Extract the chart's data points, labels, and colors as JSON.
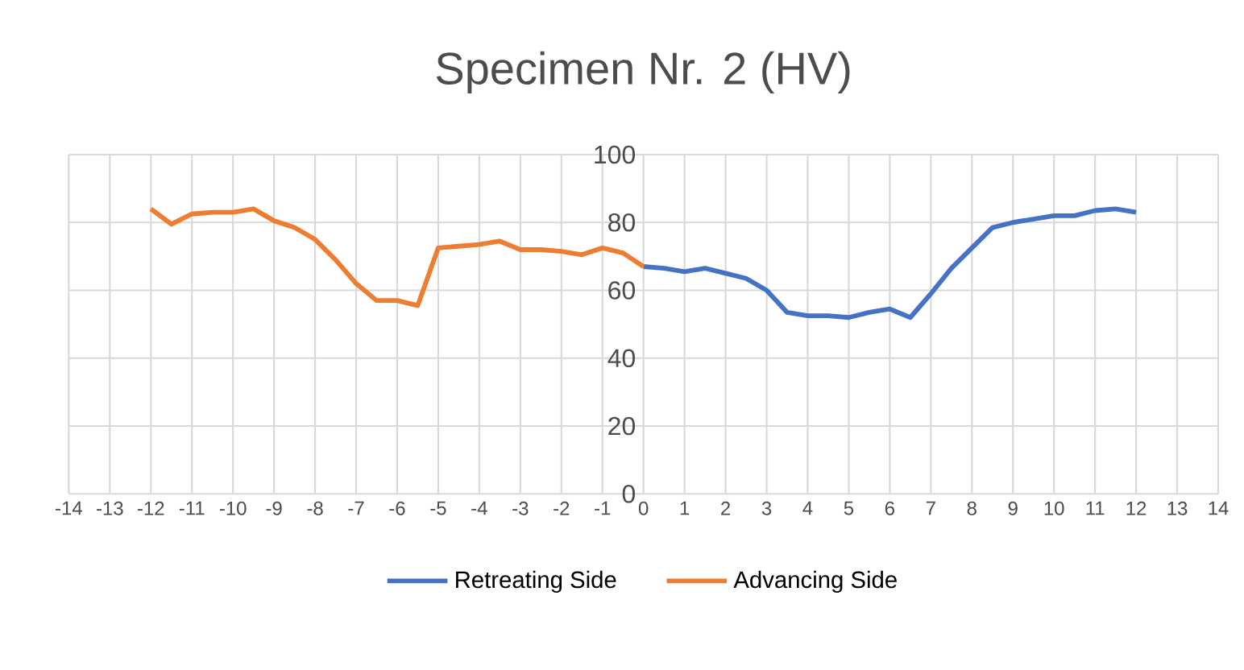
{
  "chart_data": {
    "type": "line",
    "title": "Specimen Nr. 2 (HV)",
    "xlim": [
      -14,
      14
    ],
    "xticks": [
      -14,
      -13,
      -12,
      -11,
      -10,
      -9,
      -8,
      -7,
      -6,
      -5,
      -4,
      -3,
      -2,
      -1,
      0,
      1,
      2,
      3,
      4,
      5,
      6,
      7,
      8,
      9,
      10,
      11,
      12,
      13,
      14
    ],
    "ylim": [
      0,
      100
    ],
    "yticks": [
      0,
      20,
      40,
      60,
      80,
      100
    ],
    "grid": true,
    "legend": "bottom",
    "series": [
      {
        "name": "Retreating Side",
        "color": "#4472c4",
        "x": [
          0,
          0.5,
          1,
          1.5,
          2,
          2.5,
          3,
          3.5,
          4,
          4.5,
          5,
          5.5,
          6,
          6.5,
          7,
          7.5,
          8,
          8.5,
          9,
          9.5,
          10,
          10.5,
          11,
          11.5,
          12
        ],
        "values": [
          67,
          66.5,
          65.5,
          66.5,
          65,
          63.5,
          60,
          53.5,
          52.5,
          52.5,
          52,
          53.5,
          54.5,
          52,
          59,
          66.5,
          72.5,
          78.5,
          80,
          81,
          82,
          82,
          83.5,
          84,
          83
        ]
      },
      {
        "name": "Advancing Side",
        "color": "#ed7d31",
        "x": [
          -12,
          -11.5,
          -11,
          -10.5,
          -10,
          -9.5,
          -9,
          -8.5,
          -8,
          -7.5,
          -7,
          -6.5,
          -6,
          -5.5,
          -5,
          -4.5,
          -4,
          -3.5,
          -3,
          -2.5,
          -2,
          -1.5,
          -1,
          -0.5,
          0
        ],
        "values": [
          84,
          79.5,
          82.5,
          83,
          83,
          84,
          80.5,
          78.5,
          75,
          69,
          62,
          57,
          57,
          55.5,
          72.5,
          73,
          73.5,
          74.5,
          72,
          72,
          71.5,
          70.5,
          72.5,
          71,
          67
        ]
      }
    ]
  }
}
